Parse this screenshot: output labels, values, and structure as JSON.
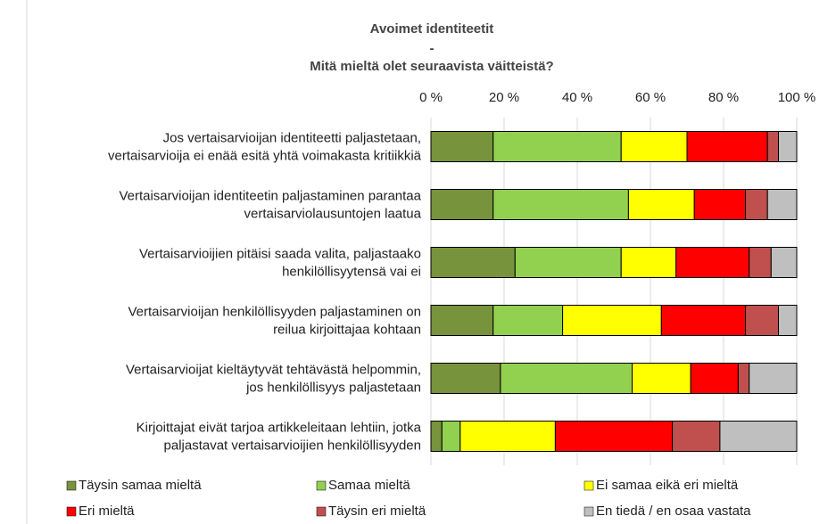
{
  "chart_data": {
    "type": "stacked_barh",
    "title": [
      "Avoimet identiteetit",
      "-",
      "Mitä mieltä olet seuraavista väitteistä?"
    ],
    "categories": [
      [
        "Jos vertaisarvioijan identiteetti paljastetaan,",
        "vertaisarvioija ei enää esitä yhtä voimakasta kritiikkiä"
      ],
      [
        "Vertaisarvioijan identiteetin paljastaminen parantaa",
        "vertaisarviolausuntojen laatua"
      ],
      [
        "Vertaisarvioijien pitäisi saada valita, paljastaako",
        "henkilöllisyytensä vai ei"
      ],
      [
        "Vertaisarvioijan henkilöllisyyden paljastaminen on",
        "reilua kirjoittajaa kohtaan"
      ],
      [
        "Vertaisarvioijat kieltäytyvät tehtävästä helpommin,",
        "jos henkilöllisyys paljastetaan"
      ],
      [
        "Kirjoittajat eivät tarjoa artikkeleitaan lehtiin, jotka",
        "paljastavat vertaisarvioijien henkilöllisyyden"
      ]
    ],
    "series": [
      {
        "name": "Täysin samaa mieltä",
        "color": "#77933c",
        "values": [
          17,
          17,
          23,
          17,
          19,
          3
        ]
      },
      {
        "name": "Samaa mieltä",
        "color": "#92d050",
        "values": [
          35,
          37,
          29,
          19,
          36,
          5
        ]
      },
      {
        "name": "Ei samaa eikä eri mieltä",
        "color": "#ffff00",
        "values": [
          18,
          18,
          15,
          27,
          16,
          26
        ]
      },
      {
        "name": "Eri mieltä",
        "color": "#ff0000",
        "values": [
          22,
          14,
          20,
          23,
          13,
          32
        ]
      },
      {
        "name": "Täysin eri mieltä",
        "color": "#c0504d",
        "values": [
          3,
          6,
          6,
          9,
          3,
          13
        ]
      },
      {
        "name": "En tiedä / en osaa vastata",
        "color": "#bfbfbf",
        "values": [
          5,
          8,
          7,
          5,
          13,
          21
        ]
      }
    ],
    "xlim": [
      0,
      100
    ],
    "xticks": [
      {
        "value": 0,
        "label": "0 %"
      },
      {
        "value": 20,
        "label": "20 %"
      },
      {
        "value": 40,
        "label": "40 %"
      },
      {
        "value": 60,
        "label": "60 %"
      },
      {
        "value": 80,
        "label": "80 %"
      },
      {
        "value": 100,
        "label": "100 %"
      }
    ],
    "grid": true,
    "legend": "bottom"
  }
}
